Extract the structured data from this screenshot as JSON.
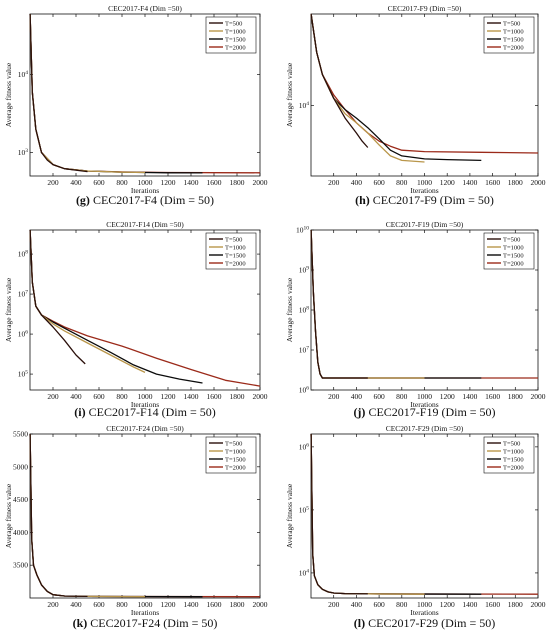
{
  "colors": {
    "T=500": "#2a0f0a",
    "T=1000": "#b9964a",
    "T=1500": "#0b0b0b",
    "T=2000": "#9b2a1a",
    "axis": "#111111"
  },
  "chart_data": [
    {
      "type": "line",
      "title": "CEC2017-F4 (Dim =50)",
      "caption_letter": "(g)",
      "caption_text": " CEC2017-F4 (Dim = 50)",
      "xlabel": "Iterations",
      "ylabel": "Average fitness value",
      "xlim": [
        0,
        2000
      ],
      "xticks": [
        200,
        400,
        600,
        800,
        1000,
        1200,
        1400,
        1600,
        1800,
        2000
      ],
      "yscale": "log",
      "ylim": [
        500,
        60000
      ],
      "yticks": [
        {
          "v": 1000,
          "base": "10",
          "exp": "3"
        },
        {
          "v": 10000,
          "base": "10",
          "exp": "4"
        }
      ],
      "legend": [
        "T=500",
        "T=1000",
        "T=1500",
        "T=2000"
      ],
      "legend_position": "top-right",
      "series": [
        {
          "name": "T=500",
          "x": [
            1,
            20,
            50,
            100,
            150,
            200,
            300,
            500
          ],
          "y": [
            60000,
            6000,
            2000,
            1000,
            800,
            700,
            620,
            570
          ]
        },
        {
          "name": "T=1000",
          "x": [
            1,
            20,
            50,
            100,
            200,
            300,
            500,
            800,
            1000
          ],
          "y": [
            60000,
            6000,
            2000,
            1000,
            700,
            620,
            580,
            560,
            555
          ]
        },
        {
          "name": "T=1500",
          "x": [
            1,
            20,
            50,
            100,
            200,
            300,
            500,
            800,
            1200,
            1500
          ],
          "y": [
            60000,
            6000,
            2000,
            1000,
            700,
            620,
            580,
            560,
            550,
            548
          ]
        },
        {
          "name": "T=2000",
          "x": [
            1,
            20,
            50,
            100,
            200,
            300,
            500,
            800,
            1200,
            1600,
            2000
          ],
          "y": [
            60000,
            6000,
            2000,
            1000,
            700,
            620,
            580,
            565,
            555,
            552,
            550
          ]
        }
      ]
    },
    {
      "type": "line",
      "title": "CEC2017-F9 (Dim =50)",
      "caption_letter": "(h)",
      "caption_text": " CEC2017-F9 (Dim = 50)",
      "xlabel": "Iterations",
      "ylabel": "Average fitness value",
      "xlim": [
        0,
        2000
      ],
      "xticks": [
        200,
        400,
        600,
        800,
        1000,
        1200,
        1400,
        1600,
        1800,
        2000
      ],
      "yscale": "log",
      "ylim": [
        4000,
        33000
      ],
      "yticks": [
        {
          "v": 10000,
          "base": "10",
          "exp": "4"
        }
      ],
      "legend": [
        "T=500",
        "T=1000",
        "T=1500",
        "T=2000"
      ],
      "legend_position": "top-right",
      "series": [
        {
          "name": "T=500",
          "x": [
            1,
            50,
            100,
            200,
            300,
            400,
            450,
            500
          ],
          "y": [
            33000,
            20000,
            15000,
            11000,
            8500,
            7000,
            6300,
            5800
          ]
        },
        {
          "name": "T=1000",
          "x": [
            1,
            50,
            100,
            200,
            300,
            400,
            500,
            600,
            700,
            800,
            1000
          ],
          "y": [
            33000,
            20000,
            15000,
            11000,
            9000,
            8000,
            7000,
            6000,
            5200,
            4900,
            4800
          ]
        },
        {
          "name": "T=1500",
          "x": [
            1,
            50,
            100,
            200,
            300,
            400,
            500,
            600,
            700,
            800,
            1000,
            1200,
            1500
          ],
          "y": [
            33000,
            20000,
            15000,
            11000,
            9500,
            8500,
            7500,
            6500,
            5600,
            5200,
            5000,
            4950,
            4900
          ]
        },
        {
          "name": "T=2000",
          "x": [
            1,
            50,
            100,
            200,
            300,
            400,
            500,
            600,
            700,
            800,
            1000,
            1500,
            2000
          ],
          "y": [
            33000,
            20000,
            15000,
            11500,
            9500,
            8000,
            7000,
            6300,
            5900,
            5600,
            5500,
            5450,
            5400
          ]
        }
      ]
    },
    {
      "type": "line",
      "title": "CEC2017-F14 (Dim =50)",
      "caption_letter": "(i)",
      "caption_text": " CEC2017-F14 (Dim = 50)",
      "xlabel": "Iterations",
      "ylabel": "Average fitness value",
      "xlim": [
        0,
        2000
      ],
      "xticks": [
        200,
        400,
        600,
        800,
        1000,
        1200,
        1400,
        1600,
        1800,
        2000
      ],
      "yscale": "log",
      "ylim": [
        40000,
        400000000
      ],
      "yticks": [
        {
          "v": 100000,
          "base": "10",
          "exp": "5"
        },
        {
          "v": 1000000,
          "base": "10",
          "exp": "6"
        },
        {
          "v": 10000000,
          "base": "10",
          "exp": "7"
        },
        {
          "v": 100000000,
          "base": "10",
          "exp": "8"
        }
      ],
      "legend": [
        "T=500",
        "T=1000",
        "T=1500",
        "T=2000"
      ],
      "legend_position": "top-right",
      "series": [
        {
          "name": "T=500",
          "x": [
            1,
            20,
            50,
            100,
            200,
            300,
            400,
            480
          ],
          "y": [
            400000000,
            20000000,
            5000000,
            3000000,
            1500000,
            700000,
            300000,
            180000
          ]
        },
        {
          "name": "T=1000",
          "x": [
            1,
            20,
            50,
            100,
            200,
            300,
            500,
            700,
            900,
            1000
          ],
          "y": [
            400000000,
            20000000,
            5000000,
            3000000,
            1800000,
            1200000,
            600000,
            300000,
            150000,
            110000
          ]
        },
        {
          "name": "T=1500",
          "x": [
            1,
            20,
            50,
            100,
            200,
            300,
            500,
            700,
            900,
            1100,
            1300,
            1500
          ],
          "y": [
            400000000,
            20000000,
            5000000,
            3000000,
            2000000,
            1400000,
            700000,
            350000,
            170000,
            100000,
            75000,
            60000
          ]
        },
        {
          "name": "T=2000",
          "x": [
            1,
            20,
            50,
            100,
            200,
            300,
            500,
            800,
            1100,
            1400,
            1700,
            2000
          ],
          "y": [
            400000000,
            20000000,
            5000000,
            3000000,
            2100000,
            1500000,
            900000,
            500000,
            250000,
            130000,
            70000,
            50000
          ]
        }
      ]
    },
    {
      "type": "line",
      "title": "CEC2017-F19 (Dim =50)",
      "caption_letter": "(j)",
      "caption_text": " CEC2017-F19 (Dim = 50)",
      "xlabel": "Iterations",
      "ylabel": "Average fitness value",
      "xlim": [
        0,
        2000
      ],
      "xticks": [
        200,
        400,
        600,
        800,
        1000,
        1200,
        1400,
        1600,
        1800,
        2000
      ],
      "yscale": "log",
      "ylim": [
        1000000,
        10000000000
      ],
      "yticks": [
        {
          "v": 1000000,
          "base": "10",
          "exp": "6"
        },
        {
          "v": 10000000,
          "base": "10",
          "exp": "7"
        },
        {
          "v": 100000000,
          "base": "10",
          "exp": "8"
        },
        {
          "v": 1000000000,
          "base": "10",
          "exp": "9"
        },
        {
          "v": 10000000000,
          "base": "10",
          "exp": "10"
        }
      ],
      "legend": [
        "T=500",
        "T=1000",
        "T=1500",
        "T=2000"
      ],
      "legend_position": "top-right",
      "series": [
        {
          "name": "T=500",
          "x": [
            1,
            20,
            40,
            60,
            80,
            100,
            200,
            500
          ],
          "y": [
            10000000000,
            300000000,
            30000000,
            5000000,
            2500000,
            2000000,
            2000000,
            2000000
          ]
        },
        {
          "name": "T=1000",
          "x": [
            1,
            20,
            40,
            60,
            80,
            100,
            500,
            1000
          ],
          "y": [
            10000000000,
            300000000,
            30000000,
            5000000,
            2500000,
            2000000,
            2000000,
            2000000
          ]
        },
        {
          "name": "T=1500",
          "x": [
            1,
            20,
            40,
            60,
            80,
            100,
            500,
            1500
          ],
          "y": [
            10000000000,
            300000000,
            30000000,
            5000000,
            2500000,
            2000000,
            2000000,
            2000000
          ]
        },
        {
          "name": "T=2000",
          "x": [
            1,
            20,
            40,
            60,
            80,
            100,
            500,
            2000
          ],
          "y": [
            10000000000,
            300000000,
            30000000,
            5000000,
            2500000,
            2000000,
            2000000,
            2000000
          ]
        }
      ]
    },
    {
      "type": "line",
      "title": "CEC2017-F24 (Dim =50)",
      "caption_letter": "(k)",
      "caption_text": " CEC2017-F24 (Dim = 50)",
      "xlabel": "Iterations",
      "ylabel": "Average fitness value",
      "xlim": [
        0,
        2000
      ],
      "xticks": [
        200,
        400,
        600,
        800,
        1000,
        1200,
        1400,
        1600,
        1800,
        2000
      ],
      "yscale": "linear",
      "ylim": [
        3000,
        5500
      ],
      "yticks": [
        {
          "v": 3500,
          "label": "3500"
        },
        {
          "v": 4000,
          "label": "4000"
        },
        {
          "v": 4500,
          "label": "4500"
        },
        {
          "v": 5000,
          "label": "5000"
        },
        {
          "v": 5500,
          "label": "5500"
        }
      ],
      "legend": [
        "T=500",
        "T=1000",
        "T=1500",
        "T=2000"
      ],
      "legend_position": "top-right",
      "series": [
        {
          "name": "T=500",
          "x": [
            1,
            15,
            30,
            60,
            100,
            150,
            200,
            300,
            500
          ],
          "y": [
            5500,
            3900,
            3500,
            3350,
            3200,
            3100,
            3050,
            3030,
            3025
          ]
        },
        {
          "name": "T=1000",
          "x": [
            1,
            15,
            30,
            60,
            100,
            150,
            200,
            300,
            500,
            1000
          ],
          "y": [
            5500,
            3900,
            3500,
            3350,
            3200,
            3100,
            3050,
            3030,
            3025,
            3020
          ]
        },
        {
          "name": "T=1500",
          "x": [
            1,
            15,
            30,
            60,
            100,
            150,
            200,
            300,
            500,
            1500
          ],
          "y": [
            5500,
            3900,
            3500,
            3350,
            3200,
            3100,
            3050,
            3030,
            3025,
            3020
          ]
        },
        {
          "name": "T=2000",
          "x": [
            1,
            15,
            30,
            60,
            100,
            150,
            200,
            300,
            500,
            2000
          ],
          "y": [
            5500,
            3900,
            3500,
            3350,
            3200,
            3100,
            3050,
            3030,
            3025,
            3020
          ]
        }
      ]
    },
    {
      "type": "line",
      "title": "CEC2017-F29 (Dim =50)",
      "caption_letter": "(l)",
      "caption_text": " CEC2017-F29 (Dim = 50)",
      "xlabel": "Iterations",
      "ylabel": "Average fitness value",
      "xlim": [
        0,
        2000
      ],
      "xticks": [
        200,
        400,
        600,
        800,
        1000,
        1200,
        1400,
        1600,
        1800,
        2000
      ],
      "yscale": "log",
      "ylim": [
        4000,
        1600000
      ],
      "yticks": [
        {
          "v": 10000,
          "base": "10",
          "exp": "4"
        },
        {
          "v": 100000,
          "base": "10",
          "exp": "5"
        },
        {
          "v": 1000000,
          "base": "10",
          "exp": "6"
        }
      ],
      "legend": [
        "T=500",
        "T=1000",
        "T=1500",
        "T=2000"
      ],
      "legend_position": "top-right",
      "series": [
        {
          "name": "T=500",
          "x": [
            1,
            15,
            30,
            60,
            100,
            150,
            200,
            300,
            500
          ],
          "y": [
            1600000,
            20000,
            9000,
            6500,
            5500,
            5000,
            4800,
            4700,
            4650
          ]
        },
        {
          "name": "T=1000",
          "x": [
            1,
            15,
            30,
            60,
            100,
            150,
            200,
            300,
            500,
            1000
          ],
          "y": [
            1600000,
            20000,
            9000,
            6500,
            5500,
            5000,
            4800,
            4700,
            4650,
            4600
          ]
        },
        {
          "name": "T=1500",
          "x": [
            1,
            15,
            30,
            60,
            100,
            150,
            200,
            300,
            500,
            1500
          ],
          "y": [
            1600000,
            20000,
            9000,
            6500,
            5500,
            5000,
            4800,
            4700,
            4650,
            4600
          ]
        },
        {
          "name": "T=2000",
          "x": [
            1,
            15,
            30,
            60,
            100,
            150,
            200,
            300,
            500,
            2000
          ],
          "y": [
            1600000,
            20000,
            9000,
            6500,
            5500,
            5000,
            4800,
            4700,
            4650,
            4600
          ]
        }
      ]
    }
  ]
}
